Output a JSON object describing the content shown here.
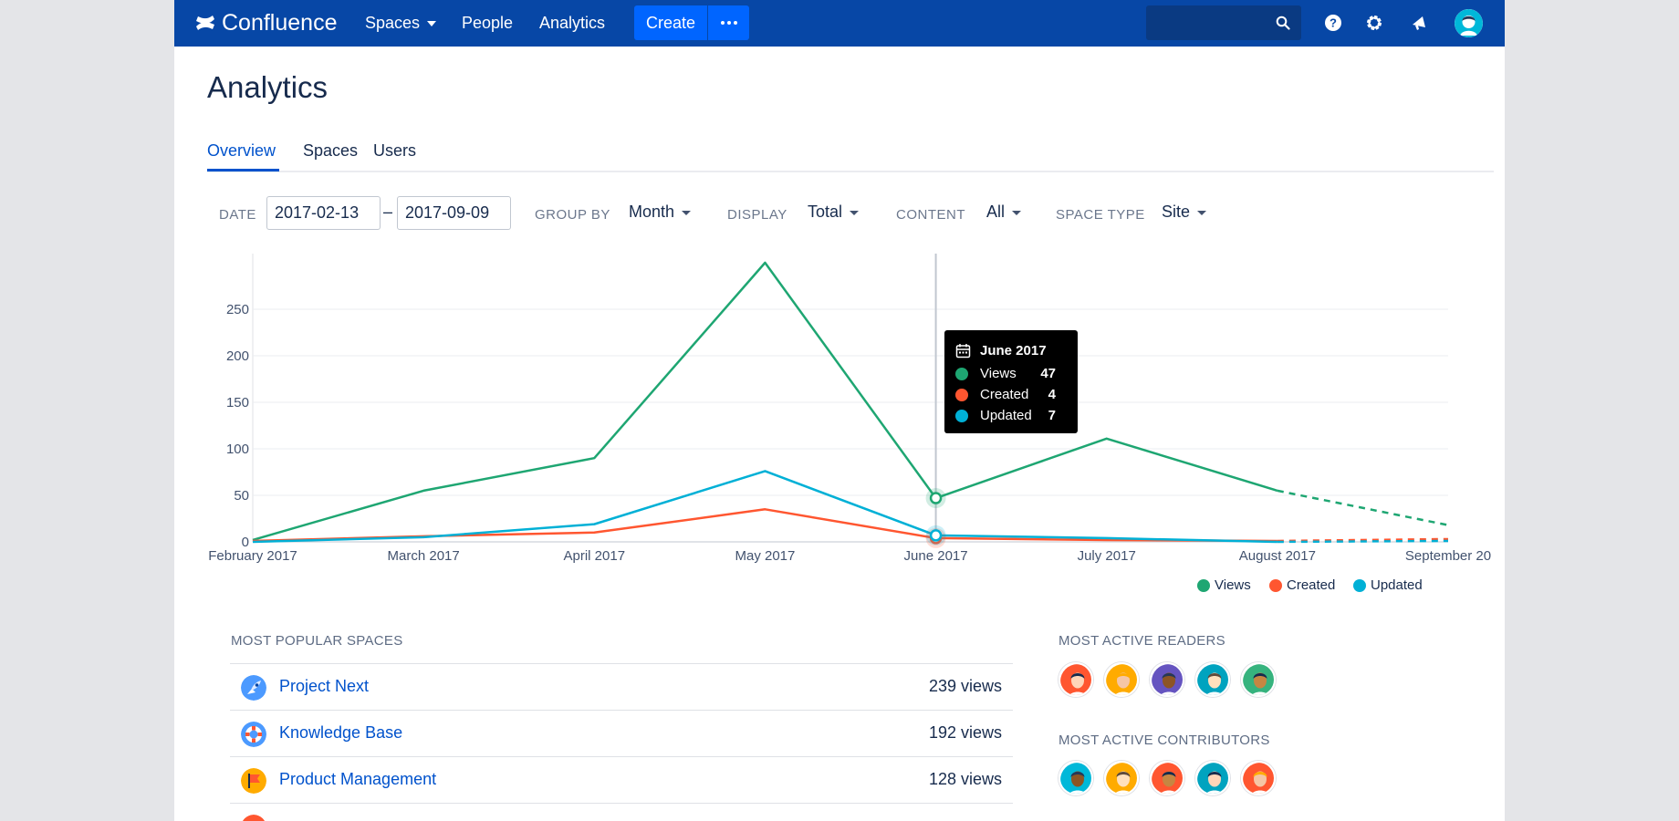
{
  "nav": {
    "brand": "Confluence",
    "spaces": "Spaces",
    "people": "People",
    "analytics": "Analytics",
    "create": "Create"
  },
  "page": {
    "title": "Analytics",
    "tabs": [
      "Overview",
      "Spaces",
      "Users"
    ]
  },
  "filters": {
    "date_label": "DATE",
    "date_from": "2017-02-13",
    "date_to": "2017-09-09",
    "group_by_label": "GROUP BY",
    "group_by": "Month",
    "display_label": "DISPLAY",
    "display": "Total",
    "content_label": "CONTENT",
    "content": "All",
    "space_type_label": "SPACE TYPE",
    "space_type": "Site"
  },
  "chart_data": {
    "type": "line",
    "categories": [
      "February 2017",
      "March 2017",
      "April 2017",
      "May 2017",
      "June 2017",
      "July 2017",
      "August 2017",
      "September 20"
    ],
    "ylim": [
      0,
      300
    ],
    "yticks": [
      0,
      50,
      100,
      150,
      200,
      250
    ],
    "projected_from_index": 6,
    "highlight_index": 4,
    "series": [
      {
        "name": "Views",
        "color": "#1ea672",
        "values": [
          2,
          55,
          90,
          300,
          47,
          111,
          55,
          18
        ]
      },
      {
        "name": "Created",
        "color": "#ff5630",
        "values": [
          1,
          6,
          10,
          35,
          4,
          2,
          1,
          3
        ]
      },
      {
        "name": "Updated",
        "color": "#00b0d6",
        "values": [
          0,
          5,
          19,
          76,
          7,
          4,
          0,
          1
        ]
      }
    ]
  },
  "tooltip": {
    "title": "June 2017",
    "rows": [
      {
        "name": "Views",
        "value": "47"
      },
      {
        "name": "Created",
        "value": "4"
      },
      {
        "name": "Updated",
        "value": "7"
      }
    ]
  },
  "legend": [
    "Views",
    "Created",
    "Updated"
  ],
  "popular_spaces": {
    "heading": "MOST POPULAR SPACES",
    "items": [
      {
        "name": "Project Next",
        "views": "239 views",
        "icon": "rocket-icon"
      },
      {
        "name": "Knowledge Base",
        "views": "192 views",
        "icon": "lifebuoy-icon"
      },
      {
        "name": "Product Management",
        "views": "128 views",
        "icon": "flag-icon"
      }
    ]
  },
  "readers": {
    "heading": "MOST ACTIVE READERS",
    "colors": [
      "#ff5630",
      "#ffab00",
      "#6554c0",
      "#00a3bf",
      "#36b37e"
    ]
  },
  "contributors": {
    "heading": "MOST ACTIVE CONTRIBUTORS",
    "colors": [
      "#00b8d9",
      "#ffab00",
      "#ff5630",
      "#00a3bf",
      "#ff5630"
    ]
  }
}
